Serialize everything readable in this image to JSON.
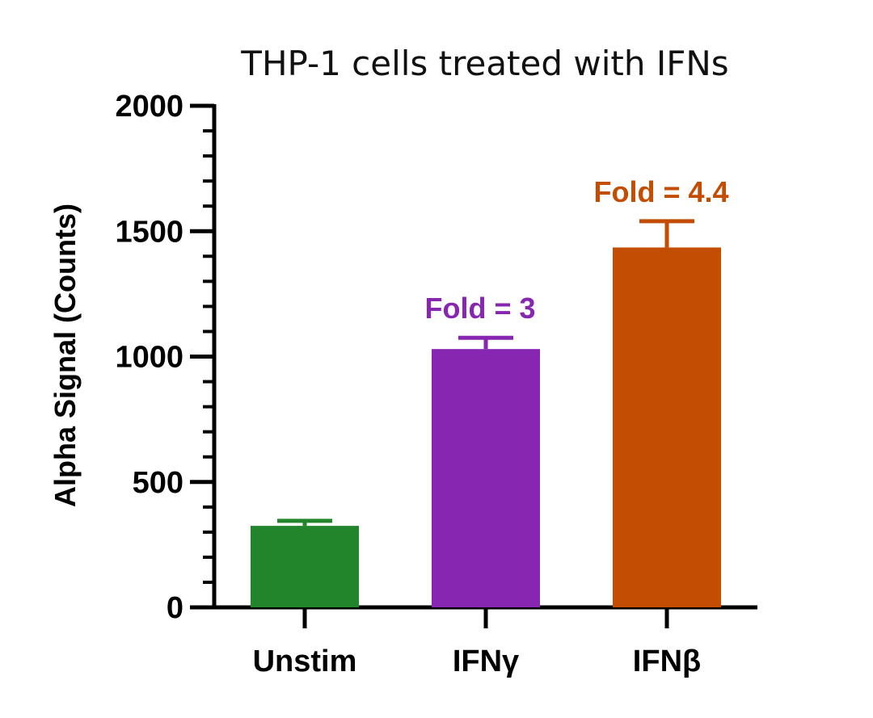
{
  "chart_data": {
    "type": "bar",
    "title": "THP-1 cells treated with IFNs",
    "xlabel": "",
    "ylabel": "Alpha Signal (Counts)",
    "ylim": [
      0,
      2000
    ],
    "yticks": [
      "0",
      "500",
      "1000",
      "1500",
      "2000"
    ],
    "categories": [
      "Unstim",
      "IFNγ",
      "IFNβ"
    ],
    "values": [
      325,
      1030,
      1435
    ],
    "errors": [
      20,
      45,
      105
    ],
    "colors": [
      "#23852B",
      "#8726B1",
      "#C34D02"
    ],
    "annotations": [
      "",
      "Fold = 3",
      "Fold = 4.4"
    ],
    "grid": false,
    "legend": "none"
  }
}
